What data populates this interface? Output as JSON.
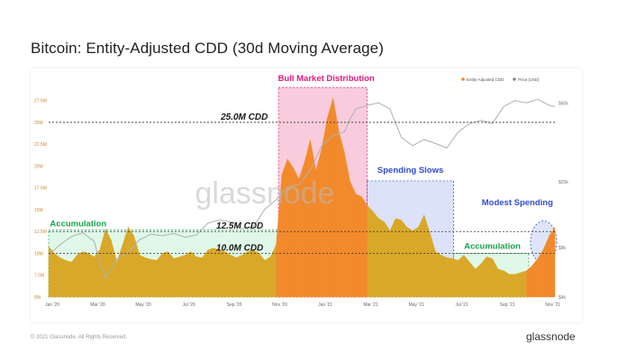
{
  "title": "Bitcoin: Entity-Adjusted CDD (30d Moving Average)",
  "watermark": "glassnode",
  "footer": {
    "copyright": "© 2021 Glassnode. All Rights Reserved.",
    "logo": "glassnode"
  },
  "colors": {
    "cdd_fill": "#f28a2c",
    "accumulation_fill": "#d9a829",
    "price_line": "#b0b0b0",
    "bull_zone": "#f5b7cd",
    "bull_label": "#e6197d",
    "spending_zone": "#c3cff5",
    "spending_label": "#2f4dd6",
    "accumulation_zone": "#c9f3d8",
    "accumulation_label": "#1aa34a"
  },
  "chart_data": {
    "type": "area",
    "title": "Bitcoin: Entity-Adjusted CDD (30d Moving Average)",
    "legend": {
      "placement": "top-right",
      "entries": [
        "Entity-Adjusted CDD",
        "Price [USD]"
      ]
    },
    "x_ticks": [
      "Jan '20",
      "Mar '20",
      "May '20",
      "Jul '20",
      "Sep '20",
      "Nov '20",
      "Jan '21",
      "Mar '21",
      "May '21",
      "Jul '21",
      "Sep '21",
      "Nov '21"
    ],
    "y_left_ticks": [
      "5M",
      "7.5M",
      "10M",
      "12.5M",
      "15M",
      "17.5M",
      "20M",
      "22.5M",
      "25M",
      "27.5M"
    ],
    "y_left_range": [
      5,
      28.5
    ],
    "y_right_ticks": [
      "$4k",
      "$8k",
      "$20k",
      "$60k"
    ],
    "y_right_scale": "log",
    "y_right_range": [
      4000,
      70000
    ],
    "grid": false,
    "series": [
      {
        "name": "Entity-Adjusted CDD",
        "unit": "M",
        "x": [
          0,
          0.25,
          0.5,
          0.75,
          1,
          1.25,
          1.5,
          1.75,
          2,
          2.25,
          2.5,
          2.75,
          3,
          3.25,
          3.5,
          3.75,
          4,
          4.25,
          4.5,
          4.75,
          5,
          5.25,
          5.5,
          5.75,
          6,
          6.25,
          6.5,
          6.75,
          7,
          7.25,
          7.5,
          7.75,
          8,
          8.25,
          8.5,
          8.75,
          9,
          9.25,
          9.5,
          9.75,
          10,
          10.25,
          10.5,
          10.75,
          11,
          11.25,
          11.5,
          11.75,
          12,
          12.25,
          12.5,
          12.75,
          13,
          13.25,
          13.5,
          13.75,
          14,
          14.25,
          14.5,
          14.75,
          15,
          15.25,
          15.5,
          15.75,
          16,
          16.25,
          16.5,
          16.75,
          17,
          17.25,
          17.5,
          17.75,
          18,
          18.25,
          18.5,
          18.75,
          19,
          19.25,
          19.5,
          19.75,
          20,
          20.25,
          20.5,
          20.75,
          21,
          21.25,
          21.5,
          21.75,
          22,
          22.25
        ],
        "values": [
          10.8,
          10.0,
          9.5,
          9.2,
          9.0,
          9.8,
          10.2,
          10.0,
          9.6,
          10.4,
          12.8,
          11.5,
          9.0,
          11.0,
          13.0,
          12.0,
          9.8,
          9.5,
          9.3,
          9.2,
          10.0,
          10.2,
          9.4,
          9.6,
          9.8,
          10.2,
          9.6,
          9.5,
          10.4,
          10.6,
          10.4,
          10.2,
          9.8,
          9.5,
          9.8,
          10.2,
          10.4,
          10.0,
          9.2,
          9.6,
          11.0,
          19.0,
          20.8,
          19.8,
          18.5,
          20.5,
          23.0,
          19.5,
          22.0,
          25.5,
          27.8,
          24.0,
          21.5,
          18.2,
          16.8,
          16.5,
          15.5,
          14.8,
          14.0,
          13.6,
          12.6,
          14.0,
          13.8,
          13.0,
          12.6,
          13.0,
          14.4,
          12.4,
          10.2,
          9.8,
          9.5,
          9.4,
          9.2,
          9.8,
          9.0,
          8.2,
          8.8,
          9.6,
          9.4,
          8.2,
          8.0,
          7.6,
          7.6,
          7.8,
          8.0,
          8.6,
          9.4,
          10.5,
          12.0,
          13.0
        ]
      },
      {
        "name": "Price [USD]",
        "unit": "USD",
        "x": [
          0,
          0.5,
          1,
          1.5,
          2,
          2.25,
          2.5,
          2.75,
          3,
          3.5,
          4,
          4.5,
          5,
          5.5,
          6,
          6.5,
          7,
          7.5,
          8,
          8.5,
          9,
          9.5,
          10,
          10.5,
          11,
          11.5,
          12,
          12.5,
          13,
          13.25,
          13.5,
          14,
          14.5,
          15,
          15.5,
          16,
          16.5,
          17,
          17.5,
          18,
          18.5,
          19,
          19.5,
          20,
          20.5,
          21,
          21.5,
          22,
          22.25
        ],
        "values": [
          7200,
          8300,
          9300,
          9800,
          8700,
          6500,
          5200,
          5900,
          6800,
          7500,
          8900,
          9600,
          9400,
          9700,
          9200,
          9500,
          11200,
          11700,
          11400,
          10400,
          10700,
          13600,
          15500,
          18500,
          19200,
          23500,
          33000,
          38000,
          40000,
          48000,
          55000,
          58000,
          60000,
          55000,
          37000,
          33000,
          36000,
          34000,
          32000,
          40000,
          45000,
          47000,
          45000,
          57000,
          62000,
          60000,
          63000,
          58000,
          57000
        ]
      }
    ],
    "zones": [
      {
        "label": "Accumulation",
        "start": 0,
        "end": 10.1,
        "low": 5,
        "high": 12.7
      },
      {
        "label": "Bull Market Distribution",
        "start": 10.1,
        "end": 14.0,
        "low": 5,
        "high": 29.0
      },
      {
        "label": "Spending Slows",
        "start": 14.0,
        "end": 17.8,
        "low": 5,
        "high": 18.3
      },
      {
        "label": "Accumulation",
        "start": 17.8,
        "end": 21.1,
        "low": 5,
        "high": 10.0
      },
      {
        "label": "Modest Spending",
        "start": 21.1,
        "end": 22.25,
        "low": 5,
        "high": 13.5
      }
    ],
    "reference_lines": [
      {
        "label": "25.0M CDD",
        "value": 25.0
      },
      {
        "label": "12.5M CDD",
        "value": 12.5
      },
      {
        "label": "10.0M CDD",
        "value": 10.0
      }
    ],
    "annotations": [
      "Bull Market Distribution",
      "Spending Slows",
      "Modest Spending",
      "Accumulation",
      "Accumulation"
    ]
  }
}
